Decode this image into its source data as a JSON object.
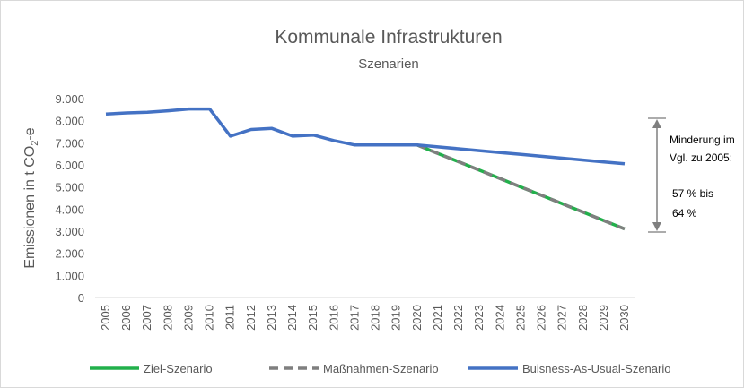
{
  "chart_data": {
    "type": "line",
    "title": "Kommunale Infrastrukturen",
    "subtitle": "Szenarien",
    "y_label": {
      "main": "Emissionen in t CO",
      "sub": "2",
      "suffix": "-e"
    },
    "categories": [
      "2005",
      "2006",
      "2007",
      "2008",
      "2009",
      "2010",
      "2011",
      "2012",
      "2013",
      "2014",
      "2015",
      "2016",
      "2017",
      "2018",
      "2019",
      "2020",
      "2021",
      "2022",
      "2023",
      "2024",
      "2025",
      "2026",
      "2027",
      "2028",
      "2029",
      "2030"
    ],
    "series": [
      {
        "name": "Ziel-Szenario",
        "color": "#22b04b",
        "dash": false,
        "values": [
          null,
          null,
          null,
          null,
          null,
          null,
          null,
          null,
          null,
          null,
          null,
          null,
          null,
          null,
          null,
          6900,
          6520,
          6140,
          5760,
          5380,
          5000,
          4620,
          4240,
          3860,
          3480,
          3100
        ]
      },
      {
        "name": "Maßnahmen-Szenario",
        "color": "#7f7f7f",
        "dash": true,
        "values": [
          null,
          null,
          null,
          null,
          null,
          null,
          null,
          null,
          null,
          null,
          null,
          null,
          null,
          null,
          null,
          6900,
          6520,
          6140,
          5760,
          5380,
          5000,
          4620,
          4240,
          3860,
          3480,
          3100
        ]
      },
      {
        "name": "Buisness-As-Usual-Szenario",
        "color": "#4472c4",
        "dash": false,
        "values": [
          8300,
          8350,
          8380,
          8450,
          8530,
          8530,
          7300,
          7600,
          7650,
          7300,
          7350,
          7100,
          6900,
          6900,
          6900,
          6900,
          6815,
          6730,
          6645,
          6560,
          6475,
          6390,
          6305,
          6220,
          6135,
          6050
        ]
      }
    ],
    "ylim": [
      0,
      9000
    ],
    "yticks": [
      0,
      {
        "value": 1000,
        "label": "1.000"
      },
      {
        "value": 2000,
        "label": "2.000"
      },
      {
        "value": 3000,
        "label": "3.000"
      },
      {
        "value": 4000,
        "label": "4.000"
      },
      {
        "value": 5000,
        "label": "5.000"
      },
      {
        "value": 6000,
        "label": "6.000"
      },
      {
        "value": 7000,
        "label": "7.000"
      },
      {
        "value": 8000,
        "label": "8.000"
      },
      {
        "value": 9000,
        "label": "9.000"
      }
    ],
    "annotations": [
      "Minderung im",
      "Vgl. zu 2005:",
      "57 % bis",
      "64 %"
    ],
    "legend": "bottom"
  }
}
